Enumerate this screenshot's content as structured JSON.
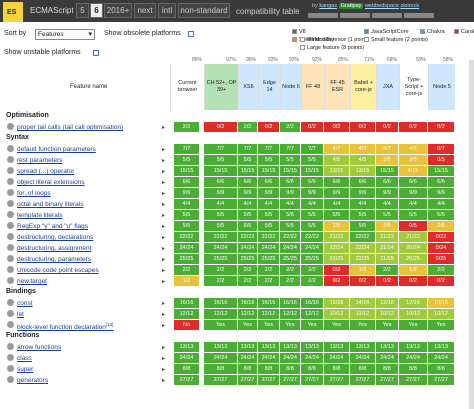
{
  "header": {
    "logo_text": "ES",
    "title": "ECMAScript",
    "tabs": [
      "5",
      "6",
      "2016+",
      "next",
      "intl",
      "non-standard"
    ],
    "active_tab": "6",
    "subtitle": "compatibility table",
    "byline_prefix": "by",
    "author": "kangax",
    "sponsor": "Gratipay",
    "webbedspace": "webbedspace",
    "zloirock": "zloirock"
  },
  "controls": {
    "sort_label": "Sort by",
    "sort_value": "Features",
    "show_obsolete_label": "Show obsolete platforms",
    "show_unstable_label": "Show unstable platforms"
  },
  "legend": {
    "items": [
      {
        "label": "V8",
        "color": "#2b8a2b"
      },
      {
        "label": "SpiderMonkey",
        "color": "#e6902a"
      },
      {
        "label": "JavaScriptCore",
        "color": "#3a8fd0"
      },
      {
        "label": "Chakra",
        "color": "#4a9fe0"
      },
      {
        "label": "Carakan",
        "color": "#c33"
      },
      {
        "label": "Minor difference (1 point)",
        "color": "#fff"
      },
      {
        "label": "Small feature (2 points)",
        "color": "#fff"
      },
      {
        "label": "Large feature (8 points)",
        "color": "#fff"
      }
    ]
  },
  "table": {
    "feature_header": "Feature name",
    "columns": [
      {
        "label": "Current browser",
        "pct": "86%"
      },
      {
        "label": "CH 52+, OP 39+",
        "pct": "97%"
      },
      {
        "label": "XS6",
        "pct": "95%"
      },
      {
        "label": "Edge 14",
        "pct": "93%"
      },
      {
        "label": "Node 6",
        "pct": "93%"
      },
      {
        "label": "FF 48",
        "pct": "92%"
      },
      {
        "label": "FF 45 ESR",
        "pct": "85%"
      },
      {
        "label": "Babel + core-js",
        "pct": "71%"
      },
      {
        "label": "JXA",
        "pct": "68%"
      },
      {
        "label": "Type-Script + core-js",
        "pct": "59%"
      },
      {
        "label": "Node 5",
        "pct": "58%"
      }
    ],
    "sections": [
      {
        "name": "Optimisation",
        "rows": [
          {
            "name": "proper tail calls (tail call optimisation)",
            "cells": [
              "2/2",
              "0/2",
              "2/2",
              "0/2",
              "2/2",
              "0/2",
              "0/2",
              "0/2",
              "0/2",
              "0/2",
              "0/2"
            ]
          }
        ]
      },
      {
        "name": "Syntax",
        "rows": [
          {
            "name": "default function parameters",
            "cells": [
              "7/7",
              "7/7",
              "7/7",
              "7/7",
              "7/7",
              "7/7",
              "4/7",
              "4/7",
              "4/7",
              "4/7",
              "0/7"
            ]
          },
          {
            "name": "rest parameters",
            "cells": [
              "5/5",
              "5/5",
              "5/5",
              "5/5",
              "5/5",
              "5/5",
              "4/5",
              "4/5",
              "3/5",
              "3/5",
              "0/5"
            ]
          },
          {
            "name": "spread (...) operator",
            "cells": [
              "15/15",
              "15/15",
              "15/15",
              "15/15",
              "15/15",
              "15/15",
              "13/15",
              "13/15",
              "15/15",
              "4/15",
              "15/15"
            ]
          },
          {
            "name": "object literal extensions",
            "cells": [
              "6/6",
              "6/6",
              "6/6",
              "6/6",
              "6/6",
              "6/6",
              "6/6",
              "6/6",
              "6/6",
              "6/6",
              "6/6"
            ]
          },
          {
            "name": "for..of loops",
            "cells": [
              "9/9",
              "9/9",
              "9/9",
              "9/9",
              "9/9",
              "9/9",
              "9/9",
              "9/9",
              "9/9",
              "9/9",
              "9/9"
            ]
          },
          {
            "name": "octal and binary literals",
            "cells": [
              "4/4",
              "4/4",
              "4/4",
              "4/4",
              "4/4",
              "4/4",
              "4/4",
              "4/4",
              "4/4",
              "4/4",
              "4/4"
            ]
          },
          {
            "name": "template literals",
            "cells": [
              "5/5",
              "5/5",
              "5/5",
              "5/5",
              "5/5",
              "5/5",
              "5/5",
              "5/5",
              "5/5",
              "5/5",
              "5/5"
            ]
          },
          {
            "name": "RegExp \"y\" and \"u\" flags",
            "cells": [
              "5/5",
              "5/5",
              "5/5",
              "5/5",
              "5/5",
              "5/5",
              "2/5",
              "5/5",
              "2/5",
              "0/5",
              "2/5"
            ]
          },
          {
            "name": "destructuring, declarations",
            "cells": [
              "22/22",
              "22/22",
              "22/22",
              "22/22",
              "22/22",
              "22/22",
              "21/22",
              "22/22",
              "21/22",
              "21/22",
              "0/22"
            ]
          },
          {
            "name": "destructuring, assignment",
            "cells": [
              "24/24",
              "24/24",
              "24/24",
              "24/24",
              "24/24",
              "24/24",
              "22/24",
              "22/24",
              "21/24",
              "20/24",
              "0/24"
            ]
          },
          {
            "name": "destructuring, parameters",
            "cells": [
              "25/25",
              "25/25",
              "25/25",
              "25/25",
              "25/25",
              "25/25",
              "22/25",
              "22/25",
              "21/25",
              "20/25",
              "0/25"
            ]
          },
          {
            "name": "Unicode code point escapes",
            "cells": [
              "2/2",
              "2/2",
              "2/2",
              "2/2",
              "2/2",
              "2/2",
              "0/2",
              "1/2",
              "2/2",
              "1/2",
              "2/2"
            ]
          },
          {
            "name": "new.target",
            "cells": [
              "1/2",
              "2/2",
              "2/2",
              "2/2",
              "2/2",
              "2/2",
              "0/2",
              "0/2",
              "0/2",
              "0/2",
              "0/2"
            ]
          }
        ]
      },
      {
        "name": "Bindings",
        "rows": [
          {
            "name": "const",
            "cells": [
              "16/16",
              "16/16",
              "16/16",
              "16/16",
              "16/16",
              "16/16",
              "15/16",
              "14/16",
              "12/16",
              "12/16",
              "10/16"
            ]
          },
          {
            "name": "let",
            "cells": [
              "12/12",
              "12/12",
              "12/12",
              "12/12",
              "12/12",
              "12/12",
              "10/12",
              "11/12",
              "10/12",
              "10/12",
              "10/12"
            ]
          },
          {
            "name": "block-level function declaration",
            "ref": "[13]",
            "cells": [
              "No",
              "Yes",
              "Yes",
              "Yes",
              "Yes",
              "Yes",
              "Yes",
              "Yes",
              "Yes",
              "Yes",
              "Yes"
            ]
          }
        ]
      },
      {
        "name": "Functions",
        "rows": [
          {
            "name": "arrow functions",
            "cells": [
              "13/13",
              "13/13",
              "13/13",
              "13/13",
              "13/13",
              "13/13",
              "13/13",
              "13/13",
              "13/13",
              "13/13",
              "13/13"
            ]
          },
          {
            "name": "class",
            "cells": [
              "24/24",
              "24/24",
              "24/24",
              "24/24",
              "24/24",
              "24/24",
              "24/24",
              "24/24",
              "24/24",
              "24/24",
              "24/24"
            ]
          },
          {
            "name": "super",
            "cells": [
              "8/8",
              "8/8",
              "8/8",
              "8/8",
              "8/8",
              "8/8",
              "8/8",
              "8/8",
              "8/8",
              "8/8",
              "8/8"
            ]
          },
          {
            "name": "generators",
            "cells": [
              "27/27",
              "27/27",
              "27/27",
              "27/27",
              "27/27",
              "27/27",
              "27/27",
              "27/27",
              "27/27",
              "27/27",
              "27/27"
            ]
          }
        ]
      }
    ]
  }
}
